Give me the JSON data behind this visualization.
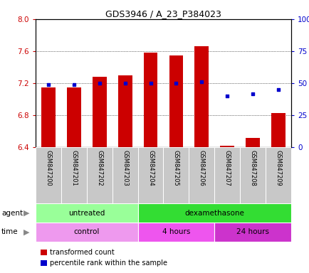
{
  "title": "GDS3946 / A_23_P384023",
  "samples": [
    "GSM847200",
    "GSM847201",
    "GSM847202",
    "GSM847203",
    "GSM847204",
    "GSM847205",
    "GSM847206",
    "GSM847207",
    "GSM847208",
    "GSM847209"
  ],
  "transformed_count": [
    7.15,
    7.15,
    7.28,
    7.3,
    7.58,
    7.55,
    7.66,
    6.42,
    6.52,
    6.83
  ],
  "percentile_rank": [
    49,
    49,
    50,
    50,
    50,
    50,
    51,
    40,
    42,
    45
  ],
  "bar_color": "#cc0000",
  "dot_color": "#0000cc",
  "ylim": [
    6.4,
    8.0
  ],
  "yticks_left": [
    6.4,
    6.8,
    7.2,
    7.6,
    8.0
  ],
  "yticks_right": [
    0,
    25,
    50,
    75,
    100
  ],
  "ylabel_left_color": "#cc0000",
  "ylabel_right_color": "#0000cc",
  "bar_bottom": 6.4,
  "agent_labels": [
    {
      "text": "untreated",
      "start": 0,
      "end": 3,
      "color": "#99ff99"
    },
    {
      "text": "dexamethasone",
      "start": 4,
      "end": 9,
      "color": "#33dd33"
    }
  ],
  "time_labels": [
    {
      "text": "control",
      "start": 0,
      "end": 3,
      "color": "#ee99ee"
    },
    {
      "text": "4 hours",
      "start": 4,
      "end": 6,
      "color": "#ee55ee"
    },
    {
      "text": "24 hours",
      "start": 7,
      "end": 9,
      "color": "#cc33cc"
    }
  ],
  "legend_items": [
    {
      "color": "#cc0000",
      "label": "transformed count"
    },
    {
      "color": "#0000cc",
      "label": "percentile rank within the sample"
    }
  ],
  "background_color": "#ffffff",
  "plot_bg_color": "#ffffff",
  "tick_label_bg": "#c8c8c8"
}
